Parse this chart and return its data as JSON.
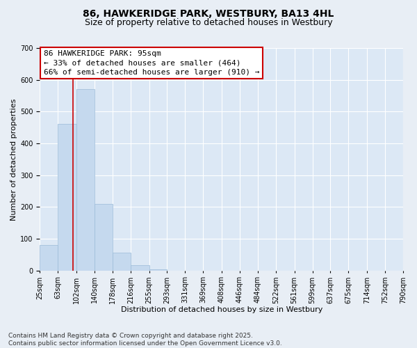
{
  "title": "86, HAWKERIDGE PARK, WESTBURY, BA13 4HL",
  "subtitle": "Size of property relative to detached houses in Westbury",
  "xlabel": "Distribution of detached houses by size in Westbury",
  "ylabel": "Number of detached properties",
  "footnote1": "Contains HM Land Registry data © Crown copyright and database right 2025.",
  "footnote2": "Contains public sector information licensed under the Open Government Licence v3.0.",
  "annotation_title": "86 HAWKERIDGE PARK: 95sqm",
  "annotation_line1": "← 33% of detached houses are smaller (464)",
  "annotation_line2": "66% of semi-detached houses are larger (910) →",
  "bin_edges": [
    25,
    63,
    102,
    140,
    178,
    216,
    255,
    293,
    331,
    369,
    408,
    446,
    484,
    522,
    561,
    599,
    637,
    675,
    714,
    752,
    790
  ],
  "bin_counts": [
    80,
    462,
    570,
    210,
    57,
    17,
    4,
    0,
    0,
    0,
    0,
    0,
    0,
    0,
    0,
    0,
    0,
    0,
    0,
    0
  ],
  "bar_color": "#c5d9ee",
  "bar_edge_color": "#9bbbd8",
  "vline_color": "#cc0000",
  "vline_x": 95,
  "annotation_edge_color": "#cc0000",
  "background_color": "#e8eef5",
  "plot_bg_color": "#dce8f5",
  "grid_color": "#ffffff",
  "ylim_max": 700,
  "yticks": [
    0,
    100,
    200,
    300,
    400,
    500,
    600,
    700
  ],
  "title_fontsize": 10,
  "subtitle_fontsize": 9,
  "xlabel_fontsize": 8,
  "ylabel_fontsize": 8,
  "tick_fontsize": 7,
  "annotation_fontsize": 8,
  "footnote_fontsize": 6.5
}
